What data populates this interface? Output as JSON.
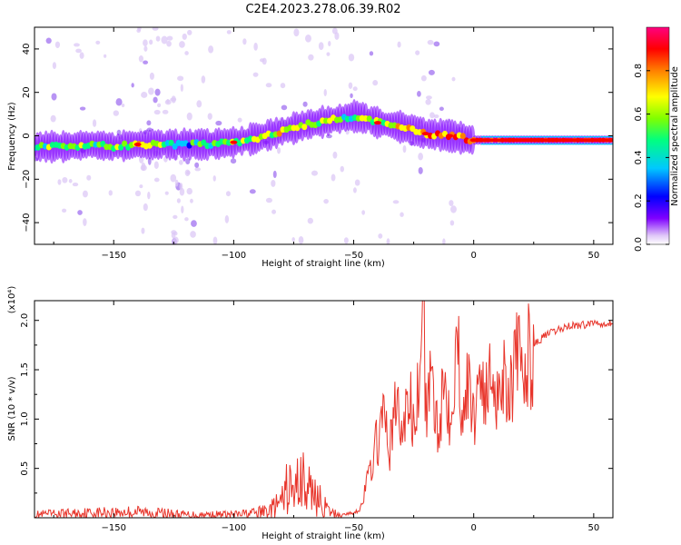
{
  "title": "C2E4.2023.278.06.39.R02",
  "chart_data": [
    {
      "type": "heatmap",
      "xlabel": "Height of straight line (km)",
      "ylabel": "Frequency (Hz)",
      "xlim": [
        -183,
        58
      ],
      "ylim": [
        -50,
        50
      ],
      "xticks": [
        -150,
        -100,
        -50,
        0,
        50
      ],
      "yticks": [
        -40,
        -20,
        0,
        20,
        40
      ],
      "colorbar": {
        "label": "Normalized spectral amplitude",
        "range": [
          0,
          1
        ],
        "ticks": [
          0.0,
          0.2,
          0.4,
          0.6,
          0.8
        ],
        "colors": [
          "#e0c8f8",
          "#7f00ff",
          "#0000ff",
          "#00c8ff",
          "#00ff80",
          "#80ff00",
          "#ffff00",
          "#ff8000",
          "#ff0000",
          "#ff0080"
        ]
      },
      "ridge": {
        "x": [
          -183,
          -170,
          -160,
          -150,
          -140,
          -130,
          -120,
          -110,
          -100,
          -90,
          -80,
          -70,
          -60,
          -55,
          -50,
          -45,
          -40,
          -30,
          -20,
          -10,
          0,
          10,
          20,
          30,
          40,
          50,
          58
        ],
        "freq": [
          -5,
          -5,
          -4,
          -5,
          -4,
          -4,
          -4,
          -4,
          -3,
          -1,
          2,
          5,
          7,
          8,
          9,
          8,
          6,
          4,
          1,
          0,
          -2,
          -2,
          -2,
          -2,
          -2,
          -2,
          -2
        ],
        "amplitude": [
          0.45,
          0.55,
          0.5,
          0.5,
          0.7,
          0.5,
          0.4,
          0.5,
          0.55,
          0.6,
          0.6,
          0.6,
          0.55,
          0.5,
          0.5,
          0.55,
          0.6,
          0.7,
          0.8,
          0.8,
          0.85,
          0.85,
          0.9,
          0.9,
          0.9,
          0.9,
          0.9
        ]
      }
    },
    {
      "type": "line",
      "xlabel": "Height of straight line (km)",
      "ylabel": "SNR (10 * v/v)",
      "y_multiplier": "(x10⁴)",
      "xlim": [
        -183,
        58
      ],
      "ylim": [
        0,
        2.2
      ],
      "xticks": [
        -150,
        -100,
        -50,
        0,
        50
      ],
      "yticks": [
        0.5,
        1.0,
        1.5,
        2.0
      ],
      "series": [
        {
          "name": "SNR",
          "color": "#e8352b",
          "x": [
            -183,
            -160,
            -140,
            -120,
            -100,
            -90,
            -85,
            -80,
            -77,
            -75,
            -72,
            -70,
            -67,
            -65,
            -60,
            -55,
            -50,
            -47,
            -45,
            -42,
            -40,
            -37,
            -35,
            -32,
            -30,
            -27,
            -25,
            -22,
            -21,
            -20,
            -17,
            -15,
            -12,
            -10,
            -7,
            -5,
            -2,
            0,
            3,
            5,
            8,
            10,
            13,
            15,
            18,
            20,
            25,
            30,
            35,
            40,
            45,
            50,
            58
          ],
          "y": [
            0.03,
            0.05,
            0.06,
            0.03,
            0.03,
            0.05,
            0.08,
            0.15,
            0.35,
            0.2,
            0.5,
            0.25,
            0.3,
            0.2,
            0.05,
            0.03,
            0.05,
            0.1,
            0.3,
            0.6,
            0.8,
            1.0,
            0.7,
            1.2,
            0.8,
            1.25,
            0.9,
            1.4,
            2.2,
            1.1,
            1.35,
            0.95,
            1.4,
            1.1,
            1.8,
            1.2,
            1.3,
            1.0,
            1.6,
            1.15,
            1.55,
            1.25,
            1.5,
            1.3,
            1.6,
            1.45,
            1.75,
            1.85,
            1.9,
            1.95,
            1.95,
            1.98,
            1.97
          ]
        }
      ]
    }
  ]
}
